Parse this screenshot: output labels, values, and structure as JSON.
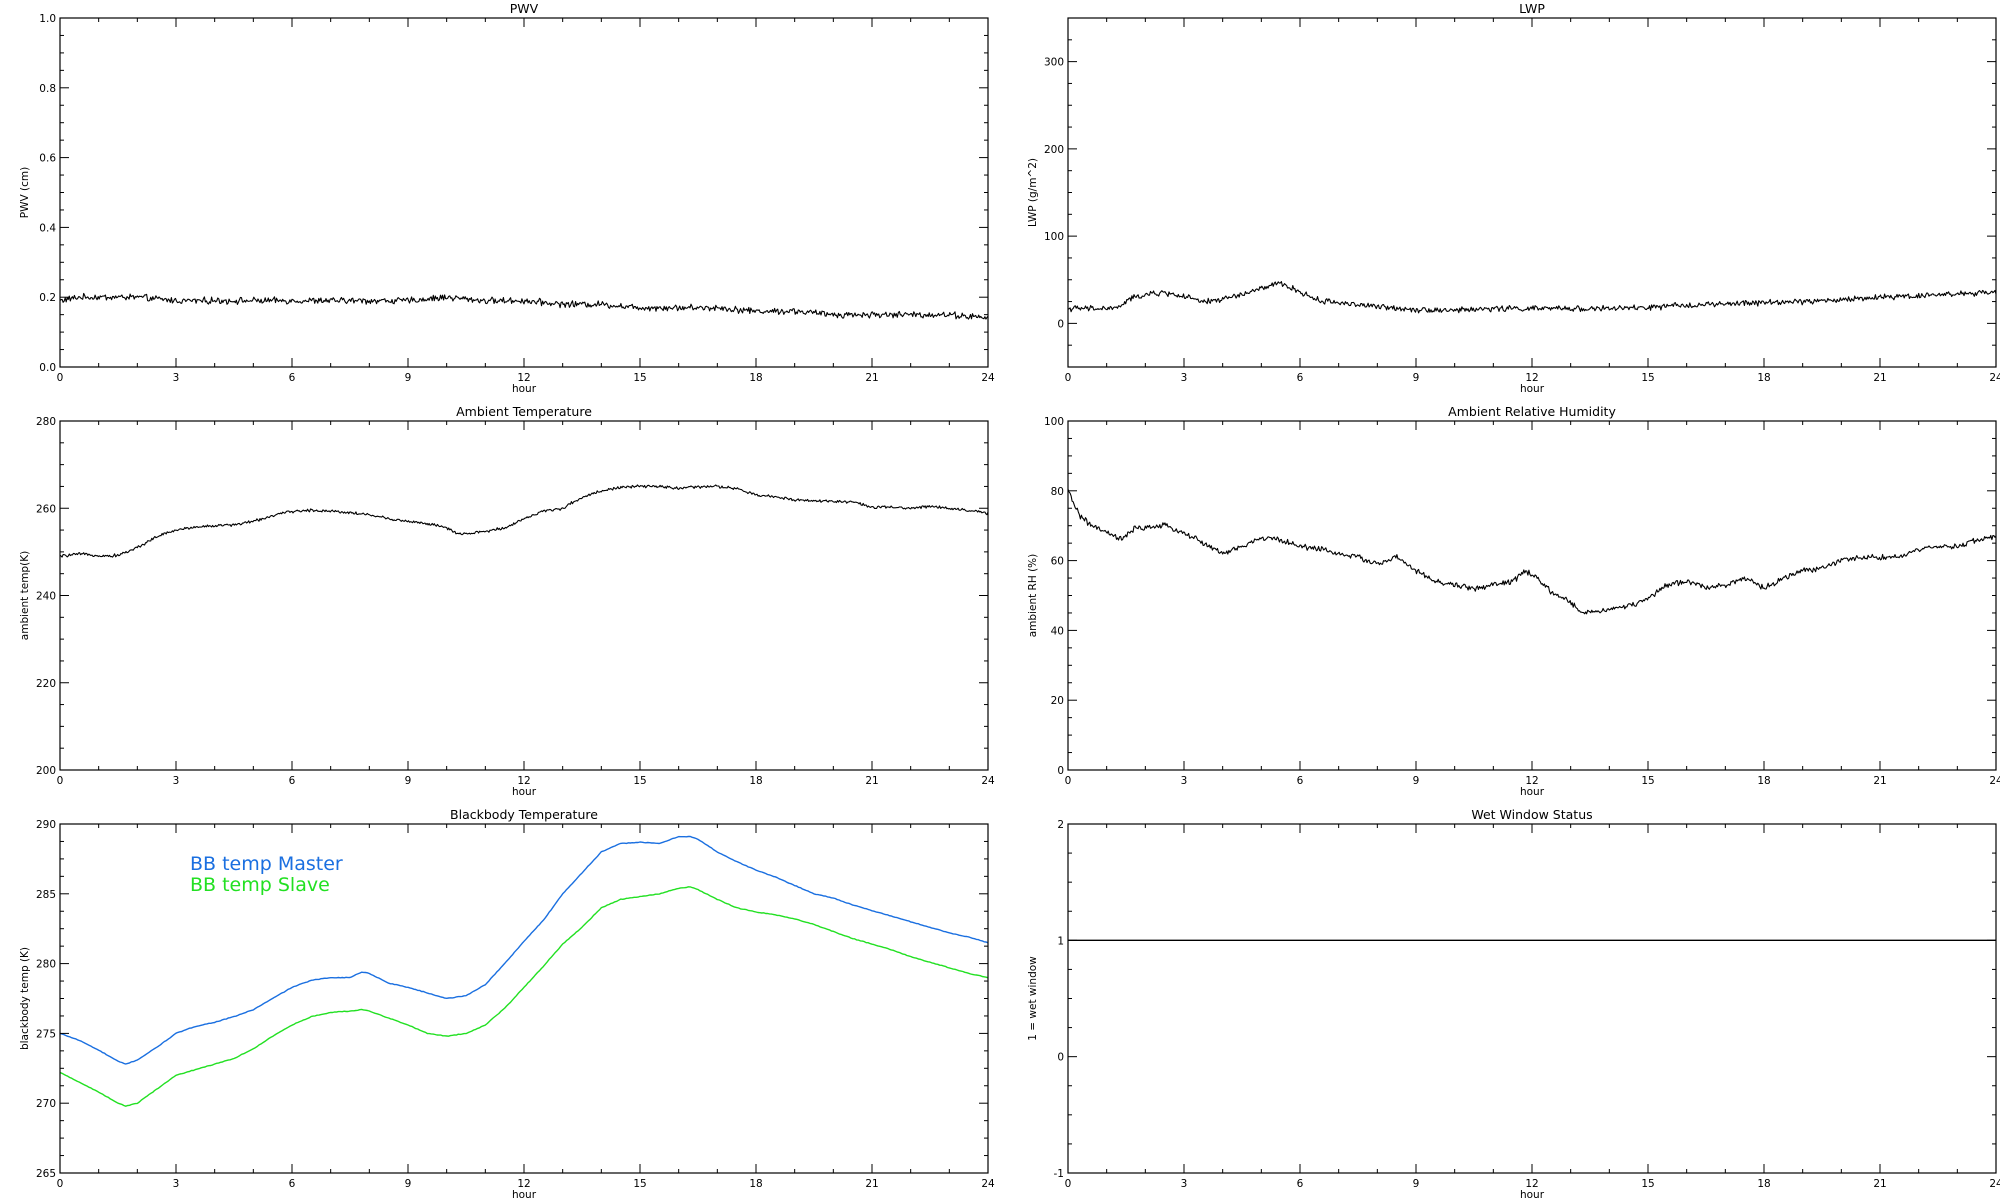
{
  "chart_data": [
    {
      "type": "line",
      "title": "PWV",
      "xlabel": "hour",
      "ylabel": "PWV (cm)",
      "xlim": [
        0,
        24
      ],
      "ylim": [
        0.0,
        1.0
      ],
      "xticks": [
        0,
        3,
        6,
        9,
        12,
        15,
        18,
        21,
        24
      ],
      "yticks": [
        "0.0",
        "0.2",
        "0.4",
        "0.6",
        "0.8",
        "1.0"
      ],
      "grid": false,
      "series": [
        {
          "color": "#000000",
          "noise": 0.007,
          "x": [
            0,
            0.5,
            1,
            1.5,
            2,
            3,
            4,
            5,
            6,
            7,
            8,
            9,
            10,
            11,
            12,
            13,
            14,
            15,
            16,
            17,
            18,
            19,
            20,
            21,
            22,
            23,
            24
          ],
          "y": [
            0.19,
            0.2,
            0.2,
            0.2,
            0.2,
            0.19,
            0.19,
            0.19,
            0.19,
            0.19,
            0.19,
            0.19,
            0.2,
            0.19,
            0.19,
            0.18,
            0.18,
            0.17,
            0.17,
            0.17,
            0.16,
            0.16,
            0.15,
            0.15,
            0.15,
            0.15,
            0.14
          ]
        }
      ]
    },
    {
      "type": "line",
      "title": "LWP",
      "xlabel": "hour",
      "ylabel": "LWP (g/m^2)",
      "xlim": [
        0,
        24
      ],
      "ylim": [
        -50,
        350
      ],
      "xticks": [
        0,
        3,
        6,
        9,
        12,
        15,
        18,
        21,
        24
      ],
      "yticks": [
        "0",
        "100",
        "200",
        "300"
      ],
      "grid": false,
      "series": [
        {
          "color": "#000000",
          "noise": 2.5,
          "x": [
            0,
            1,
            1.3,
            1.6,
            2,
            2.5,
            3,
            3.5,
            4,
            4.5,
            5,
            5.5,
            6,
            6.5,
            7,
            8,
            9,
            10,
            11,
            12,
            13,
            14,
            15,
            16,
            17,
            18,
            19,
            20,
            21,
            22,
            23,
            24
          ],
          "y": [
            17,
            17,
            18,
            28,
            33,
            35,
            31,
            24,
            28,
            33,
            40,
            46,
            36,
            26,
            24,
            19,
            16,
            15,
            17,
            17,
            17,
            17,
            18,
            21,
            22,
            24,
            25,
            27,
            30,
            32,
            34,
            35
          ]
        }
      ]
    },
    {
      "type": "line",
      "title": "Ambient Temperature",
      "xlabel": "hour",
      "ylabel": "ambient temp(K)",
      "xlim": [
        0,
        24
      ],
      "ylim": [
        200,
        280
      ],
      "xticks": [
        0,
        3,
        6,
        9,
        12,
        15,
        18,
        21,
        24
      ],
      "yticks": [
        "200",
        "220",
        "240",
        "260",
        "280"
      ],
      "grid": false,
      "series": [
        {
          "color": "#000000",
          "noise": 0.25,
          "x": [
            0,
            0.5,
            1,
            1.3,
            1.6,
            2,
            2.5,
            3,
            3.5,
            4,
            4.5,
            5,
            5.5,
            6,
            6.5,
            7,
            7.5,
            8,
            8.5,
            9,
            9.5,
            10,
            10.3,
            10.6,
            11,
            11.5,
            12,
            12.5,
            13,
            13.5,
            14,
            14.5,
            15,
            15.5,
            16,
            16.5,
            17,
            17.5,
            18,
            18.5,
            19,
            19.5,
            20,
            20.5,
            21,
            21.5,
            22,
            22.5,
            23,
            23.5,
            24
          ],
          "y": [
            249,
            249.5,
            249.2,
            249,
            249.5,
            251,
            253.5,
            255,
            255.7,
            256,
            256.2,
            257,
            258.3,
            259.3,
            259.5,
            259.4,
            259,
            258.5,
            257.6,
            257,
            256.5,
            255.5,
            254,
            254.2,
            254.7,
            255.5,
            257.6,
            259.3,
            260,
            262.5,
            264,
            264.8,
            265,
            265,
            264.6,
            264.9,
            265,
            264.5,
            263,
            262.6,
            262,
            261.7,
            261.6,
            261.5,
            260.2,
            260.2,
            260,
            260.5,
            260,
            259.5,
            258.8
          ]
        }
      ]
    },
    {
      "type": "line",
      "title": "Ambient Relative Humidity",
      "xlabel": "hour",
      "ylabel": "ambient RH (%)",
      "xlim": [
        0,
        24
      ],
      "ylim": [
        0,
        100
      ],
      "xticks": [
        0,
        3,
        6,
        9,
        12,
        15,
        18,
        21,
        24
      ],
      "yticks": [
        "0",
        "20",
        "40",
        "60",
        "80",
        "100"
      ],
      "grid": false,
      "series": [
        {
          "color": "#000000",
          "noise": 0.6,
          "x": [
            0,
            0.3,
            0.6,
            1,
            1.4,
            1.7,
            2,
            2.5,
            3,
            3.5,
            4,
            4.5,
            5,
            5.5,
            6,
            6.5,
            7,
            7.5,
            8,
            8.5,
            9,
            9.5,
            10,
            10.5,
            11,
            11.5,
            11.8,
            12,
            12.5,
            13,
            13.3,
            13.6,
            14,
            14.5,
            15,
            15.5,
            16,
            16.5,
            17,
            17.5,
            18,
            18.5,
            19,
            19.5,
            20,
            20.5,
            21,
            21.5,
            22,
            22.5,
            23,
            23.5,
            24
          ],
          "y": [
            80,
            73,
            70,
            68,
            66,
            69,
            69.5,
            70,
            68,
            65,
            62,
            64,
            66.5,
            66,
            64,
            63.5,
            62,
            61,
            59,
            61,
            57,
            54,
            53,
            52,
            53,
            54,
            57,
            56,
            51,
            48,
            45,
            45.5,
            46,
            47,
            49,
            53,
            54,
            52.5,
            53,
            55,
            52,
            55,
            57,
            58,
            60,
            61,
            61,
            61,
            63,
            64,
            64,
            66,
            67
          ]
        }
      ]
    },
    {
      "type": "line",
      "title": "Blackbody Temperature",
      "xlabel": "hour",
      "ylabel": "blackbody temp (K)",
      "xlim": [
        0,
        24
      ],
      "ylim": [
        265,
        290
      ],
      "xticks": [
        0,
        3,
        6,
        9,
        12,
        15,
        18,
        21,
        24
      ],
      "yticks": [
        "265",
        "270",
        "275",
        "280",
        "285",
        "290"
      ],
      "grid": false,
      "series": [
        {
          "name": "BB temp Master",
          "color": "#1a6fe0",
          "noise": 0,
          "x": [
            0,
            0.5,
            1,
            1.5,
            1.7,
            2,
            2.5,
            3,
            3.5,
            4,
            4.5,
            5,
            5.5,
            6,
            6.5,
            7,
            7.5,
            7.8,
            8,
            8.5,
            9,
            9.5,
            10,
            10.5,
            11,
            11.5,
            12,
            12.5,
            13,
            13.5,
            14,
            14.5,
            15,
            15.5,
            16,
            16.3,
            16.5,
            17,
            17.5,
            18,
            18.5,
            19,
            19.5,
            20,
            20.5,
            21,
            21.5,
            22,
            22.5,
            23,
            23.5,
            24
          ],
          "y": [
            275,
            274.5,
            273.8,
            273,
            272.8,
            273.1,
            274,
            275,
            275.5,
            275.8,
            276.2,
            276.7,
            277.5,
            278.3,
            278.8,
            279,
            279,
            279.4,
            279.3,
            278.6,
            278.3,
            277.9,
            277.5,
            277.7,
            278.5,
            280,
            281.6,
            283.1,
            285,
            286.5,
            288,
            288.6,
            288.7,
            288.6,
            289.1,
            289.1,
            288.9,
            288,
            287.3,
            286.7,
            286.2,
            285.6,
            285,
            284.7,
            284.2,
            283.8,
            283.4,
            283,
            282.6,
            282.2,
            281.9,
            281.5
          ]
        },
        {
          "name": "BB temp Slave",
          "color": "#22e022",
          "noise": 0,
          "x": [
            0,
            0.5,
            1,
            1.5,
            1.7,
            2,
            2.5,
            3,
            3.5,
            4,
            4.5,
            5,
            5.5,
            6,
            6.5,
            7,
            7.5,
            7.8,
            8,
            8.5,
            9,
            9.5,
            10,
            10.5,
            11,
            11.5,
            12,
            12.5,
            13,
            13.5,
            14,
            14.5,
            15,
            15.5,
            16,
            16.3,
            16.5,
            17,
            17.5,
            18,
            18.5,
            19,
            19.5,
            20,
            20.5,
            21,
            21.5,
            22,
            22.5,
            23,
            23.5,
            24
          ],
          "y": [
            272.2,
            271.5,
            270.8,
            270,
            269.8,
            270,
            271,
            272,
            272.4,
            272.8,
            273.2,
            273.9,
            274.8,
            275.6,
            276.2,
            276.5,
            276.6,
            276.7,
            276.6,
            276.1,
            275.6,
            275,
            274.8,
            275,
            275.6,
            276.8,
            278.3,
            279.8,
            281.4,
            282.6,
            284,
            284.6,
            284.8,
            285,
            285.4,
            285.5,
            285.3,
            284.6,
            284,
            283.7,
            283.5,
            283.2,
            282.8,
            282.3,
            281.8,
            281.4,
            281,
            280.5,
            280.1,
            279.7,
            279.3,
            279
          ]
        }
      ]
    },
    {
      "type": "line",
      "title": "Wet Window Status",
      "xlabel": "hour",
      "ylabel": "1 = wet window",
      "xlim": [
        0,
        24
      ],
      "ylim": [
        -1,
        2
      ],
      "xticks": [
        0,
        3,
        6,
        9,
        12,
        15,
        18,
        21,
        24
      ],
      "yticks": [
        "-1",
        "0",
        "1",
        "2"
      ],
      "grid": false,
      "series": [
        {
          "color": "#000000",
          "noise": 0,
          "x": [
            0,
            24
          ],
          "y": [
            1,
            1
          ]
        }
      ]
    }
  ]
}
